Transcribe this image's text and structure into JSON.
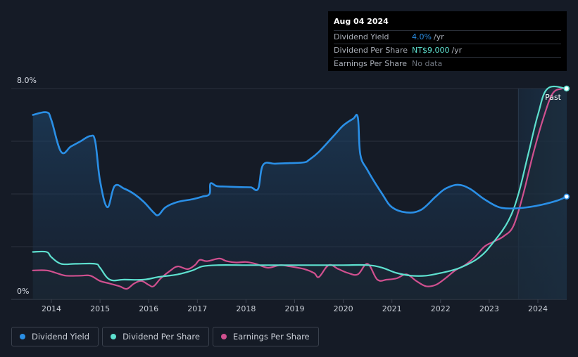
{
  "tooltip": {
    "date": "Aug 04 2024",
    "rows": [
      {
        "label": "Dividend Yield",
        "value": "4.0%",
        "unit": "/yr"
      },
      {
        "label": "Dividend Per Share",
        "value": "NT$9.000",
        "unit": "/yr"
      },
      {
        "label": "Earnings Per Share",
        "value": "No data",
        "unit": ""
      }
    ]
  },
  "legend": [
    {
      "label": "Dividend Yield",
      "color": "#2a8fe6"
    },
    {
      "label": "Dividend Per Share",
      "color": "#5ee0cf"
    },
    {
      "label": "Earnings Per Share",
      "color": "#d0508f"
    }
  ],
  "chart_data": {
    "type": "line",
    "title": "",
    "ylabel": "",
    "ylim": [
      0,
      8
    ],
    "y_tick_labels": [
      "0%",
      "8.0%"
    ],
    "x_tick_labels": [
      "2014",
      "2015",
      "2016",
      "2017",
      "2018",
      "2019",
      "2020",
      "2021",
      "2022",
      "2023",
      "2024"
    ],
    "past_label": "Past",
    "past_start": 2023.6,
    "x_range": [
      2013.1,
      2024.6
    ],
    "series": [
      {
        "name": "Dividend Yield",
        "color": "#2a8fe6",
        "points": [
          [
            2013.62,
            7.0
          ],
          [
            2013.9,
            7.1
          ],
          [
            2014.0,
            6.8
          ],
          [
            2014.2,
            5.6
          ],
          [
            2014.4,
            5.8
          ],
          [
            2014.6,
            6.0
          ],
          [
            2014.8,
            6.2
          ],
          [
            2014.9,
            6.0
          ],
          [
            2015.0,
            4.5
          ],
          [
            2015.15,
            3.5
          ],
          [
            2015.3,
            4.3
          ],
          [
            2015.5,
            4.2
          ],
          [
            2015.7,
            4.0
          ],
          [
            2015.9,
            3.7
          ],
          [
            2016.1,
            3.3
          ],
          [
            2016.2,
            3.2
          ],
          [
            2016.35,
            3.5
          ],
          [
            2016.6,
            3.7
          ],
          [
            2016.9,
            3.8
          ],
          [
            2017.1,
            3.9
          ],
          [
            2017.25,
            4.0
          ],
          [
            2017.27,
            4.4
          ],
          [
            2017.4,
            4.3
          ],
          [
            2017.6,
            4.28
          ],
          [
            2017.9,
            4.26
          ],
          [
            2018.1,
            4.25
          ],
          [
            2018.25,
            4.2
          ],
          [
            2018.35,
            5.1
          ],
          [
            2018.6,
            5.15
          ],
          [
            2018.9,
            5.17
          ],
          [
            2019.2,
            5.2
          ],
          [
            2019.3,
            5.3
          ],
          [
            2019.5,
            5.6
          ],
          [
            2019.8,
            6.2
          ],
          [
            2020.0,
            6.6
          ],
          [
            2020.2,
            6.85
          ],
          [
            2020.3,
            6.9
          ],
          [
            2020.35,
            5.5
          ],
          [
            2020.5,
            4.9
          ],
          [
            2020.8,
            4.0
          ],
          [
            2021.0,
            3.5
          ],
          [
            2021.3,
            3.3
          ],
          [
            2021.6,
            3.4
          ],
          [
            2021.9,
            3.9
          ],
          [
            2022.1,
            4.2
          ],
          [
            2022.35,
            4.35
          ],
          [
            2022.6,
            4.2
          ],
          [
            2022.9,
            3.8
          ],
          [
            2023.2,
            3.5
          ],
          [
            2023.5,
            3.45
          ],
          [
            2023.8,
            3.5
          ],
          [
            2024.1,
            3.6
          ],
          [
            2024.4,
            3.75
          ],
          [
            2024.59,
            3.9
          ]
        ]
      },
      {
        "name": "Dividend Per Share",
        "color": "#5ee0cf",
        "points": [
          [
            2013.62,
            1.8
          ],
          [
            2013.9,
            1.8
          ],
          [
            2014.0,
            1.6
          ],
          [
            2014.2,
            1.35
          ],
          [
            2014.5,
            1.35
          ],
          [
            2014.9,
            1.35
          ],
          [
            2015.0,
            1.2
          ],
          [
            2015.2,
            0.75
          ],
          [
            2015.5,
            0.75
          ],
          [
            2015.9,
            0.75
          ],
          [
            2016.2,
            0.85
          ],
          [
            2016.6,
            0.95
          ],
          [
            2016.9,
            1.1
          ],
          [
            2017.1,
            1.25
          ],
          [
            2017.4,
            1.3
          ],
          [
            2018.0,
            1.3
          ],
          [
            2018.5,
            1.3
          ],
          [
            2019.0,
            1.3
          ],
          [
            2019.5,
            1.3
          ],
          [
            2020.0,
            1.3
          ],
          [
            2020.5,
            1.3
          ],
          [
            2020.8,
            1.2
          ],
          [
            2021.1,
            1.0
          ],
          [
            2021.4,
            0.9
          ],
          [
            2021.7,
            0.9
          ],
          [
            2022.0,
            1.0
          ],
          [
            2022.4,
            1.2
          ],
          [
            2022.8,
            1.6
          ],
          [
            2023.1,
            2.2
          ],
          [
            2023.4,
            3.0
          ],
          [
            2023.6,
            4.0
          ],
          [
            2023.8,
            5.5
          ],
          [
            2024.0,
            7.0
          ],
          [
            2024.2,
            8.0
          ],
          [
            2024.59,
            8.0
          ]
        ]
      },
      {
        "name": "Earnings Per Share",
        "color": "#d0508f",
        "points": [
          [
            2013.62,
            1.1
          ],
          [
            2013.9,
            1.1
          ],
          [
            2014.1,
            1.0
          ],
          [
            2014.3,
            0.9
          ],
          [
            2014.6,
            0.9
          ],
          [
            2014.8,
            0.9
          ],
          [
            2015.0,
            0.7
          ],
          [
            2015.2,
            0.6
          ],
          [
            2015.4,
            0.5
          ],
          [
            2015.55,
            0.4
          ],
          [
            2015.7,
            0.6
          ],
          [
            2015.85,
            0.7
          ],
          [
            2016.0,
            0.55
          ],
          [
            2016.1,
            0.5
          ],
          [
            2016.25,
            0.8
          ],
          [
            2016.45,
            1.1
          ],
          [
            2016.6,
            1.25
          ],
          [
            2016.8,
            1.15
          ],
          [
            2016.95,
            1.3
          ],
          [
            2017.05,
            1.5
          ],
          [
            2017.2,
            1.45
          ],
          [
            2017.45,
            1.55
          ],
          [
            2017.6,
            1.45
          ],
          [
            2017.8,
            1.4
          ],
          [
            2018.0,
            1.42
          ],
          [
            2018.2,
            1.35
          ],
          [
            2018.45,
            1.2
          ],
          [
            2018.7,
            1.3
          ],
          [
            2018.9,
            1.25
          ],
          [
            2019.2,
            1.15
          ],
          [
            2019.4,
            1.0
          ],
          [
            2019.5,
            0.85
          ],
          [
            2019.7,
            1.3
          ],
          [
            2019.9,
            1.15
          ],
          [
            2020.1,
            1.0
          ],
          [
            2020.3,
            0.95
          ],
          [
            2020.5,
            1.35
          ],
          [
            2020.7,
            0.75
          ],
          [
            2020.9,
            0.75
          ],
          [
            2021.1,
            0.8
          ],
          [
            2021.3,
            0.95
          ],
          [
            2021.5,
            0.7
          ],
          [
            2021.7,
            0.5
          ],
          [
            2021.9,
            0.55
          ],
          [
            2022.1,
            0.8
          ],
          [
            2022.3,
            1.1
          ],
          [
            2022.5,
            1.3
          ],
          [
            2022.7,
            1.6
          ],
          [
            2022.9,
            2.0
          ],
          [
            2023.1,
            2.2
          ],
          [
            2023.3,
            2.4
          ],
          [
            2023.5,
            2.8
          ],
          [
            2023.7,
            4.0
          ],
          [
            2023.9,
            5.5
          ],
          [
            2024.1,
            6.8
          ],
          [
            2024.3,
            7.8
          ],
          [
            2024.5,
            8.0
          ]
        ]
      }
    ]
  }
}
